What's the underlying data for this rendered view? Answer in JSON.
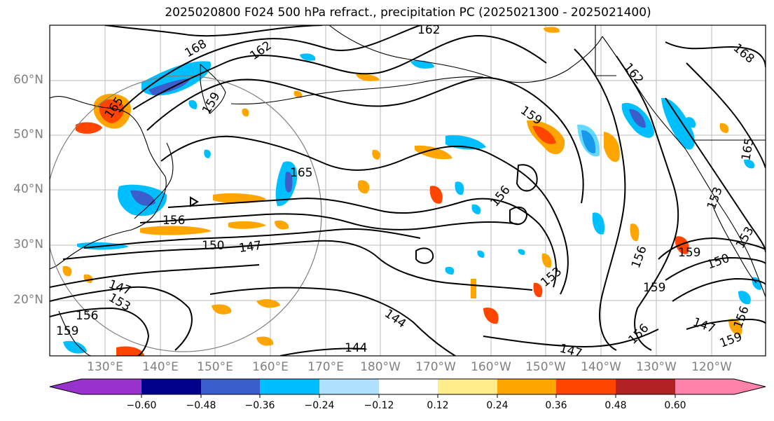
{
  "title": "2025020800 F024 500 hPa refract., precipitation PC (2025021300 - 2025021400)",
  "lat_labels": [
    "60°N",
    "50°N",
    "40°N",
    "30°N",
    "20°N"
  ],
  "lon_labels": [
    "130°E",
    "140°E",
    "150°E",
    "160°E",
    "170°E",
    "180°W",
    "170°W",
    "160°W",
    "150°W",
    "140°W",
    "130°W",
    "120°W"
  ],
  "contour_labels": [
    "162",
    "168",
    "162",
    "159",
    "165",
    "165",
    "156",
    "150",
    "147",
    "147",
    "153",
    "156",
    "159",
    "162",
    "159",
    "156",
    "153",
    "144",
    "144",
    "147",
    "153",
    "156",
    "159",
    "150",
    "159",
    "147",
    "156",
    "159",
    "153",
    "168",
    "165",
    "156"
  ],
  "colorbar": {
    "colors": [
      "#9932cc",
      "#00008b",
      "#3a5fcd",
      "#00bfff",
      "#b0e2ff",
      "#ffffff",
      "#ffec8b",
      "#ffa500",
      "#ff4500",
      "#b22222",
      "#ff82ab"
    ],
    "ticks": [
      "−0.60",
      "−0.48",
      "−0.36",
      "−0.24",
      "−0.12",
      "0.12",
      "0.24",
      "0.36",
      "0.48",
      "0.60"
    ]
  }
}
